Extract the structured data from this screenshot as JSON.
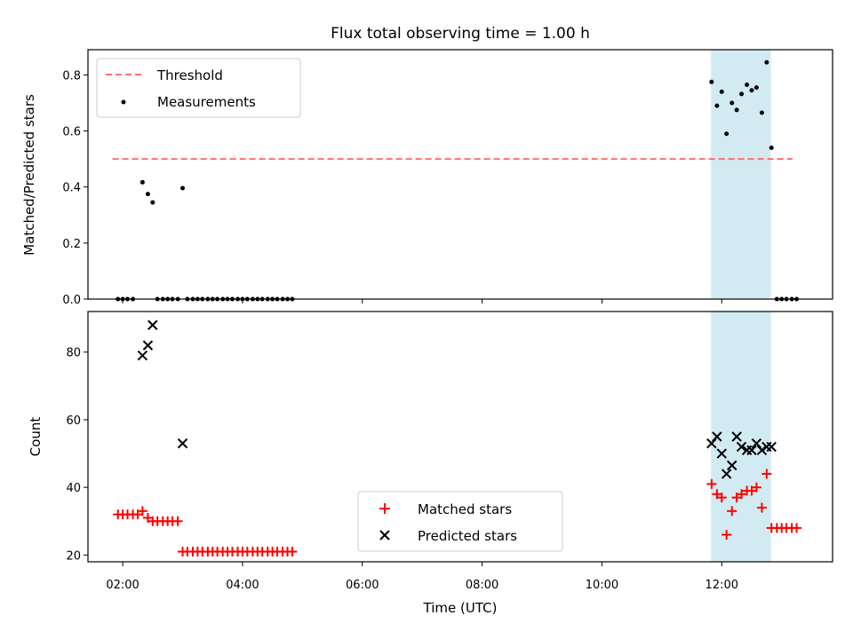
{
  "title": "Flux total observing time = 1.00 h",
  "colors": {
    "threshold": "#ff7070",
    "measurement": "#000000",
    "matched": "#ff0000",
    "predicted": "#000000",
    "highlight": "#add8e6"
  },
  "chart_data": [
    {
      "type": "scatter",
      "panel": "top",
      "title": "Flux total observing time = 1.00 h",
      "xlabel": "",
      "ylabel": "Matched/Predicted stars",
      "xlim": [
        1.42,
        13.85
      ],
      "ylim": [
        0,
        0.89
      ],
      "yticks": [
        0.0,
        0.2,
        0.4,
        0.6,
        0.8
      ],
      "ytick_labels": [
        "0.0",
        "0.2",
        "0.4",
        "0.6",
        "0.8"
      ],
      "legend_placement": "top-left",
      "highlight_span": [
        11.82,
        12.82
      ],
      "series": [
        {
          "name": "Threshold",
          "kind": "dashed-line",
          "x": [
            1.83,
            13.18
          ],
          "y": [
            0.5,
            0.5
          ]
        },
        {
          "name": "Measurements",
          "kind": "dots",
          "x": [
            1.92,
            2.0,
            2.08,
            2.17,
            2.33,
            2.42,
            2.5,
            2.58,
            2.67,
            2.75,
            2.83,
            2.92,
            3.0,
            3.08,
            3.17,
            3.25,
            3.33,
            3.42,
            3.5,
            3.58,
            3.67,
            3.75,
            3.83,
            3.92,
            4.0,
            4.08,
            4.17,
            4.25,
            4.33,
            4.42,
            4.5,
            4.58,
            4.67,
            4.75,
            4.83,
            11.83,
            11.92,
            12.0,
            12.08,
            12.17,
            12.25,
            12.33,
            12.42,
            12.5,
            12.58,
            12.67,
            12.75,
            12.83,
            12.92,
            13.0,
            13.08,
            13.17,
            13.25
          ],
          "y": [
            0,
            0,
            0,
            0,
            0.417,
            0.375,
            0.345,
            0,
            0,
            0,
            0,
            0,
            0.396,
            0,
            0,
            0,
            0,
            0,
            0,
            0,
            0,
            0,
            0,
            0,
            0,
            0,
            0,
            0,
            0,
            0,
            0,
            0,
            0,
            0,
            0,
            0.775,
            0.69,
            0.74,
            0.59,
            0.7,
            0.675,
            0.732,
            0.765,
            0.745,
            0.755,
            0.665,
            0.845,
            0.54,
            0,
            0,
            0,
            0,
            0
          ]
        }
      ]
    },
    {
      "type": "scatter",
      "panel": "bottom",
      "xlabel": "Time (UTC)",
      "ylabel": "Count",
      "xlim": [
        1.42,
        13.85
      ],
      "ylim": [
        18,
        92
      ],
      "yticks": [
        20,
        40,
        60,
        80
      ],
      "ytick_labels": [
        "20",
        "40",
        "60",
        "80"
      ],
      "xticks": [
        2,
        4,
        6,
        8,
        10,
        12
      ],
      "xtick_labels": [
        "02:00",
        "04:00",
        "06:00",
        "08:00",
        "10:00",
        "12:00"
      ],
      "legend_placement": "bottom-center",
      "highlight_span": [
        11.82,
        12.82
      ],
      "series": [
        {
          "name": "Matched stars",
          "kind": "plus",
          "x": [
            1.92,
            2.0,
            2.08,
            2.17,
            2.25,
            2.33,
            2.42,
            2.5,
            2.58,
            2.67,
            2.75,
            2.83,
            2.92,
            3.0,
            3.08,
            3.17,
            3.25,
            3.33,
            3.42,
            3.5,
            3.58,
            3.67,
            3.75,
            3.83,
            3.92,
            4.0,
            4.08,
            4.17,
            4.25,
            4.33,
            4.42,
            4.5,
            4.58,
            4.67,
            4.75,
            4.83,
            11.83,
            11.92,
            12.0,
            12.08,
            12.17,
            12.25,
            12.33,
            12.42,
            12.5,
            12.58,
            12.67,
            12.75,
            12.83,
            12.92,
            13.0,
            13.08,
            13.17,
            13.25
          ],
          "y": [
            32,
            32,
            32,
            32,
            32,
            33,
            31,
            30,
            30,
            30,
            30,
            30,
            30,
            21,
            21,
            21,
            21,
            21,
            21,
            21,
            21,
            21,
            21,
            21,
            21,
            21,
            21,
            21,
            21,
            21,
            21,
            21,
            21,
            21,
            21,
            21,
            41,
            38,
            37,
            26,
            33,
            37,
            38,
            39,
            39,
            40,
            34,
            44,
            28,
            28,
            28,
            28,
            28,
            28
          ]
        },
        {
          "name": "Predicted stars",
          "kind": "x",
          "x": [
            2.33,
            2.42,
            2.5,
            3.0,
            11.83,
            11.92,
            12.0,
            12.08,
            12.17,
            12.25,
            12.33,
            12.42,
            12.5,
            12.58,
            12.67,
            12.75,
            12.83
          ],
          "y": [
            79,
            82,
            88,
            53,
            53,
            55,
            50,
            44,
            46.5,
            55,
            52,
            51,
            51,
            53,
            51,
            52,
            52
          ]
        }
      ]
    }
  ]
}
